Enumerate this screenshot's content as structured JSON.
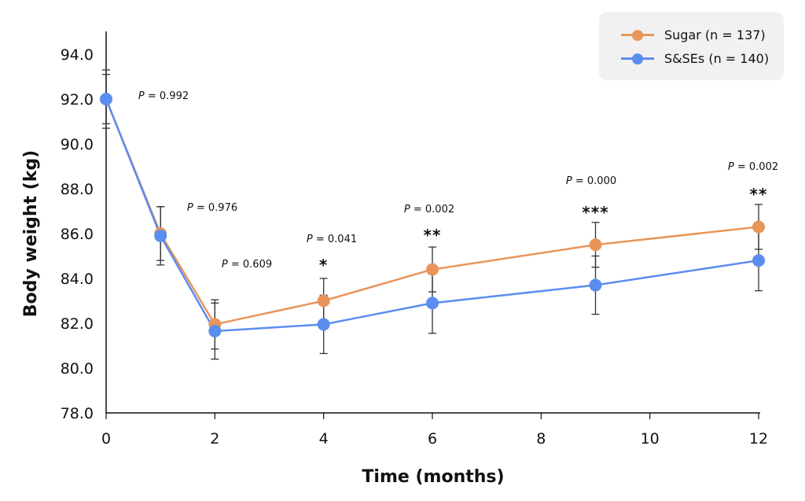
{
  "chart_data": {
    "type": "line",
    "title": "",
    "xlabel": "Time (months)",
    "ylabel": "Body weight (kg)",
    "xlim": [
      0,
      12
    ],
    "ylim": [
      78,
      95.5
    ],
    "x_ticks": [
      0,
      2,
      4,
      6,
      8,
      10,
      12
    ],
    "x_tick_labels": [
      "0",
      "2",
      "4",
      "6",
      "8",
      "10",
      "12"
    ],
    "y_ticks": [
      78,
      80,
      82,
      84,
      86,
      88,
      90,
      92,
      94
    ],
    "y_tick_labels": [
      "78.0",
      "80.0",
      "82.0",
      "84.0",
      "86.0",
      "88.0",
      "90.0",
      "92.0",
      "94.0"
    ],
    "grid": false,
    "legend_position": "top-right",
    "x": [
      0,
      1,
      2,
      4,
      6,
      9,
      12
    ],
    "series": [
      {
        "name": "Sugar (n = 137)",
        "color": "#E8955A",
        "values": [
          92.0,
          86.0,
          81.95,
          83.0,
          84.4,
          85.5,
          86.3
        ],
        "error": [
          1.3,
          1.2,
          1.1,
          1.0,
          1.0,
          1.0,
          1.0
        ]
      },
      {
        "name": "S&SEs (n = 140)",
        "color": "#5B8DEF",
        "values": [
          92.0,
          85.9,
          81.65,
          81.95,
          82.9,
          83.7,
          84.8
        ],
        "error": [
          1.1,
          1.3,
          1.25,
          1.3,
          1.35,
          1.3,
          1.35
        ]
      }
    ],
    "annotations": [
      {
        "x": 0,
        "p_text": "0.992",
        "sig": ""
      },
      {
        "x": 1,
        "p_text": "0.976",
        "sig": ""
      },
      {
        "x": 2,
        "p_text": "0.609",
        "sig": ""
      },
      {
        "x": 4,
        "p_text": "0.041",
        "sig": "*"
      },
      {
        "x": 6,
        "p_text": "0.002",
        "sig": "**"
      },
      {
        "x": 9,
        "p_text": "0.000",
        "sig": "***"
      },
      {
        "x": 12,
        "p_text": "0.002",
        "sig": "**"
      }
    ],
    "p_prefix": "P",
    "p_equals": " = "
  },
  "legend": {
    "items": [
      {
        "label": "Sugar (n = 137)",
        "color": "#E8955A"
      },
      {
        "label": "S&SEs (n = 140)",
        "color": "#5B8DEF"
      }
    ]
  }
}
